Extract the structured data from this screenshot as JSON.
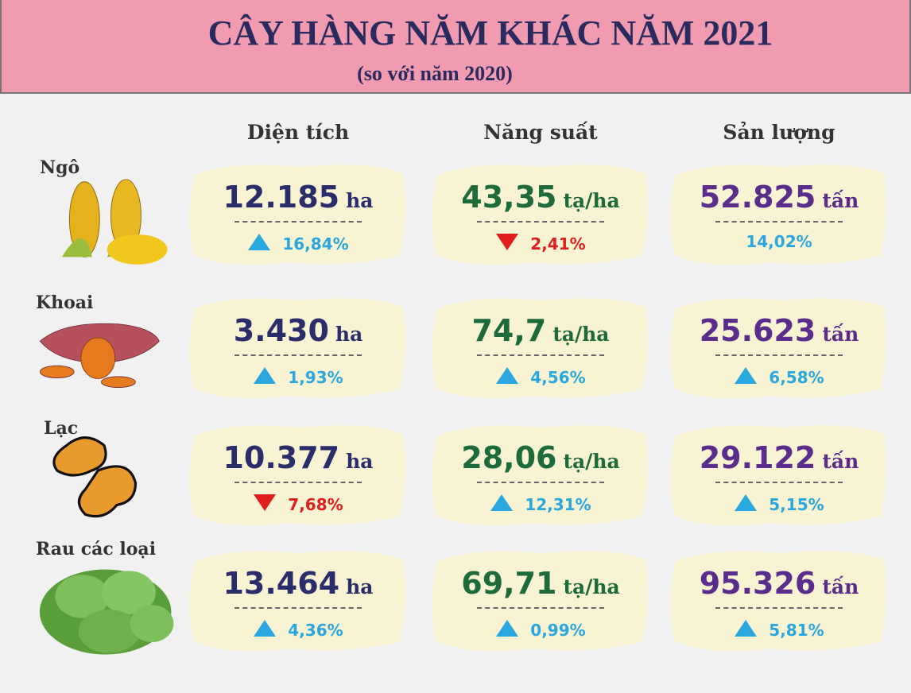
{
  "header": {
    "title": "CÂY HÀNG NĂM KHÁC NĂM 2021",
    "subtitle": "(so với năm 2020)"
  },
  "columns": [
    "Diện tích",
    "Năng suất",
    "Sản lượng"
  ],
  "rows": [
    {
      "label": "Ngô",
      "icon": "corn",
      "cells": [
        {
          "value": "12.185",
          "unit": "ha",
          "change": "16,84%",
          "direction": "up"
        },
        {
          "value": "43,35",
          "unit": "tạ/ha",
          "change": "2,41%",
          "direction": "down"
        },
        {
          "value": "52.825",
          "unit": "tấn",
          "change": "14,02%",
          "direction": null
        }
      ]
    },
    {
      "label": "Khoai",
      "icon": "potato",
      "cells": [
        {
          "value": "3.430",
          "unit": "ha",
          "change": "1,93%",
          "direction": "up"
        },
        {
          "value": "74,7",
          "unit": "tạ/ha",
          "change": "4,56%",
          "direction": "up"
        },
        {
          "value": "25.623",
          "unit": "tấn",
          "change": "6,58%",
          "direction": "up"
        }
      ]
    },
    {
      "label": "Lạc",
      "icon": "peanut",
      "cells": [
        {
          "value": "10.377",
          "unit": "ha",
          "change": "7,68%",
          "direction": "down"
        },
        {
          "value": "28,06",
          "unit": "tạ/ha",
          "change": "12,31%",
          "direction": "up"
        },
        {
          "value": "29.122",
          "unit": "tấn",
          "change": "5,15%",
          "direction": "up"
        }
      ]
    },
    {
      "label": "Rau các loại",
      "icon": "lettuce",
      "cells": [
        {
          "value": "13.464",
          "unit": "ha",
          "change": "4,36%",
          "direction": "up"
        },
        {
          "value": "69,71",
          "unit": "tạ/ha",
          "change": "0,99%",
          "direction": "up"
        },
        {
          "value": "95.326",
          "unit": "tấn",
          "change": "5,81%",
          "direction": "up"
        }
      ]
    }
  ],
  "colors": {
    "values": [
      "#2b2d6b",
      "#1d6b3a",
      "#5a2d8c"
    ],
    "up": "#2aa7df",
    "down": "#e01e1e"
  }
}
